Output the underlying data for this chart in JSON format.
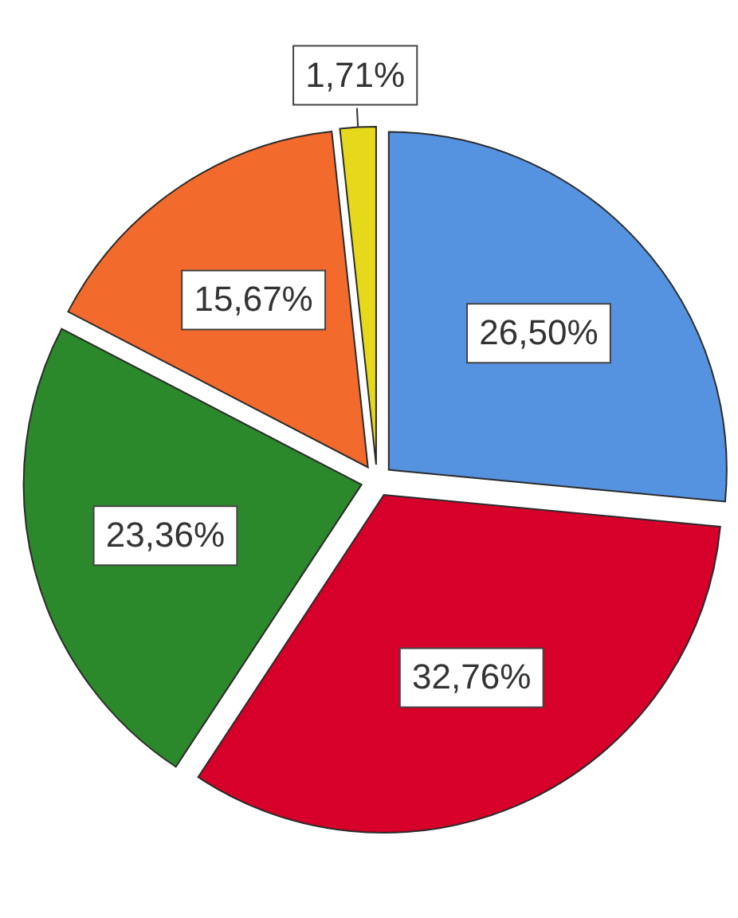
{
  "chart_data": {
    "type": "pie",
    "categories": [
      null,
      null,
      null,
      null,
      null
    ],
    "values": [
      26.5,
      32.76,
      23.36,
      15.67,
      1.71
    ],
    "colors": [
      "#5592e0",
      "#d6002a",
      "#2b882b",
      "#f26a2c",
      "#e6d81a"
    ],
    "value_labels": [
      "26,50%",
      "32,76%",
      "23,36%",
      "15,67%",
      "1,71%"
    ]
  }
}
